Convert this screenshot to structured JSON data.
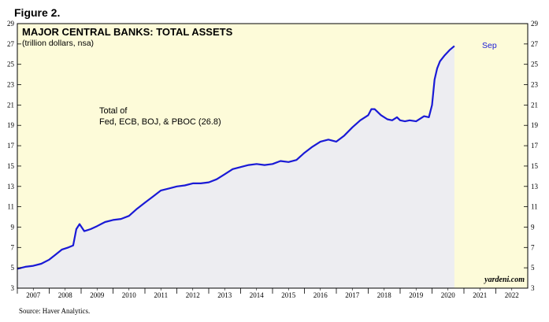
{
  "figure_label": "Figure 2.",
  "source": "Source: Haver Analytics.",
  "chart_data": {
    "type": "area",
    "title": "MAJOR CENTRAL BANKS: TOTAL ASSETS",
    "subtitle": "(trillion dollars, nsa)",
    "annotation": [
      "Total of",
      "Fed, ECB, BOJ, & PBOC (26.8)"
    ],
    "end_label": "Sep",
    "watermark": "yardeni.com",
    "xlabel": "",
    "ylabel": "",
    "ylim": [
      3,
      29
    ],
    "yticks": [
      "3",
      "5",
      "7",
      "9",
      "11",
      "13",
      "15",
      "17",
      "19",
      "21",
      "23",
      "25",
      "27",
      "29"
    ],
    "xlim": [
      2007.0,
      2023.0
    ],
    "year_labels": [
      "2007",
      "2008",
      "2009",
      "2010",
      "2011",
      "2012",
      "2013",
      "2014",
      "2015",
      "2016",
      "2017",
      "2018",
      "2019",
      "2020",
      "2021",
      "2022"
    ],
    "forecast_shade_start": 2020.75,
    "grid": false,
    "colors": {
      "line": "#1a1ad6",
      "area": "#ededf1",
      "background": "#fdfbd9",
      "shade": "#fdfbd9"
    },
    "series": [
      {
        "name": "",
        "x": [
          2007.0,
          2007.25,
          2007.5,
          2007.75,
          2008.0,
          2008.2,
          2008.4,
          2008.6,
          2008.75,
          2008.85,
          2008.95,
          2009.1,
          2009.2,
          2009.3,
          2009.5,
          2009.75,
          2010.0,
          2010.25,
          2010.5,
          2010.75,
          2011.0,
          2011.25,
          2011.5,
          2011.75,
          2012.0,
          2012.25,
          2012.5,
          2012.75,
          2013.0,
          2013.25,
          2013.5,
          2013.75,
          2014.0,
          2014.25,
          2014.5,
          2014.75,
          2015.0,
          2015.25,
          2015.5,
          2015.75,
          2016.0,
          2016.25,
          2016.5,
          2016.75,
          2017.0,
          2017.25,
          2017.5,
          2017.75,
          2018.0,
          2018.1,
          2018.2,
          2018.4,
          2018.6,
          2018.75,
          2018.9,
          2019.0,
          2019.15,
          2019.3,
          2019.5,
          2019.75,
          2019.9,
          2020.0,
          2020.08,
          2020.16,
          2020.25,
          2020.4,
          2020.55,
          2020.7
        ],
        "values": [
          4.9,
          5.1,
          5.2,
          5.4,
          5.8,
          6.3,
          6.8,
          7.0,
          7.2,
          8.8,
          9.3,
          8.6,
          8.7,
          8.8,
          9.1,
          9.5,
          9.7,
          9.8,
          10.1,
          10.8,
          11.4,
          12.0,
          12.6,
          12.8,
          13.0,
          13.1,
          13.3,
          13.3,
          13.4,
          13.7,
          14.2,
          14.7,
          14.9,
          15.1,
          15.2,
          15.1,
          15.2,
          15.5,
          15.4,
          15.6,
          16.3,
          16.9,
          17.4,
          17.6,
          17.4,
          18.0,
          18.8,
          19.5,
          20.0,
          20.6,
          20.6,
          20.0,
          19.6,
          19.5,
          19.8,
          19.5,
          19.4,
          19.5,
          19.4,
          19.9,
          19.8,
          21.0,
          23.5,
          24.6,
          25.3,
          25.9,
          26.4,
          26.8
        ]
      }
    ]
  }
}
